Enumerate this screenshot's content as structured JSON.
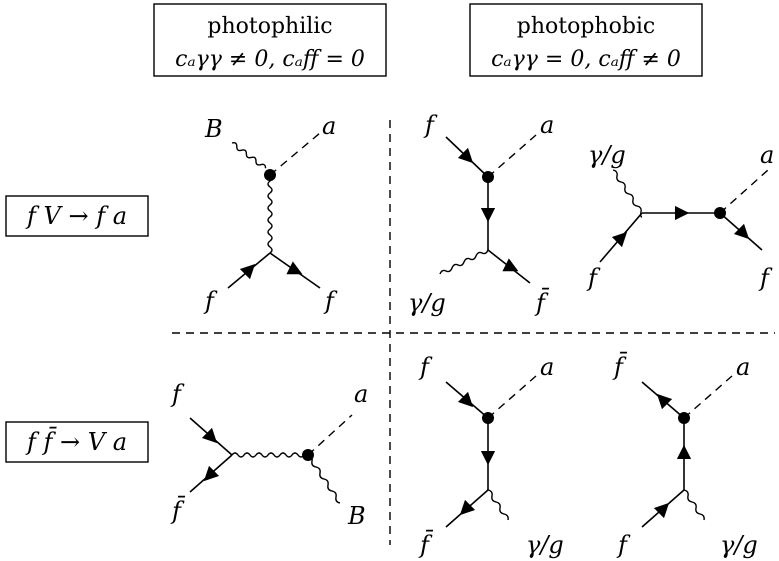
{
  "headers": {
    "photophilic": {
      "title": "photophilic",
      "condition": "cₐγγ ≠ 0,  cₐff = 0"
    },
    "photophobic": {
      "title": "photophobic",
      "condition": "cₐγγ = 0,  cₐff ≠ 0"
    }
  },
  "processes": {
    "row1": "f V → f a",
    "row2": "f f̄ → V a"
  },
  "labels": {
    "f": "f",
    "fbar": "f̄",
    "a": "a",
    "B": "B",
    "gamma_g": "γ/g"
  }
}
